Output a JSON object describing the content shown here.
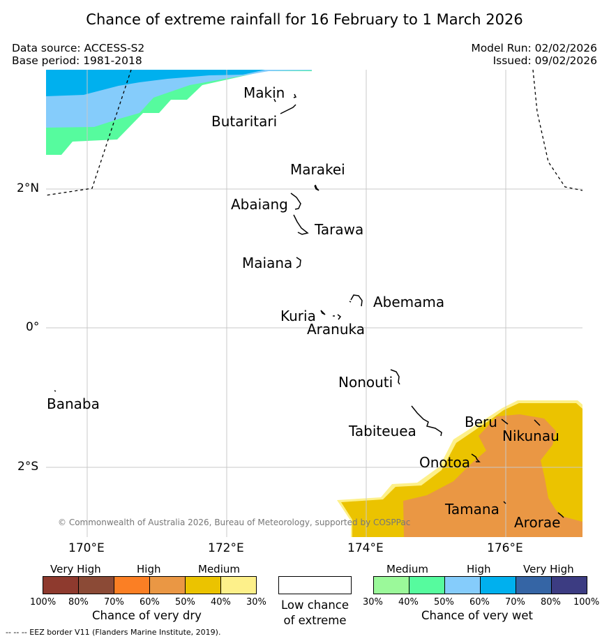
{
  "title": "Chance of extreme rainfall for 16 February to 1 March 2026",
  "header": {
    "data_source": "Data source: ACCESS-S2",
    "base_period": "Base period: 1981-2018",
    "model_run": "Model Run: 02/02/2026",
    "issued": "Issued: 09/02/2026"
  },
  "map": {
    "lat_labels": [
      "2°N",
      "0°",
      "2°S"
    ],
    "lon_labels": [
      "170°E",
      "172°E",
      "174°E",
      "176°E"
    ],
    "islands": {
      "makin": "Makin",
      "butaritari": "Butaritari",
      "marakei": "Marakei",
      "abaiang": "Abaiang",
      "tarawa": "Tarawa",
      "maiana": "Maiana",
      "abemama": "Abemama",
      "kuria": "Kuria",
      "aranuka": "Aranuka",
      "nonouti": "Nonouti",
      "banaba": "Banaba",
      "tabiteuea": "Tabiteuea",
      "beru": "Beru",
      "nikunau": "Nikunau",
      "onotoa": "Onotoa",
      "tamana": "Tamana",
      "arorae": "Arorae"
    },
    "copyright": "© Commonwealth of Australia 2026, Bureau of Meteorology, supported by COSPPac"
  },
  "legend": {
    "dry": {
      "categories": [
        "Very High",
        "High",
        "Medium"
      ],
      "ticks": [
        "100%",
        "80%",
        "70%",
        "60%",
        "50%",
        "40%",
        "30%"
      ],
      "colors": [
        "#8e3a2e",
        "#8b4a36",
        "#fb7f24",
        "#ea9744",
        "#ebc300",
        "#fdf08a"
      ],
      "label": "Chance of very dry"
    },
    "neutral": {
      "line1": "Low chance",
      "line2": "of extreme"
    },
    "wet": {
      "categories": [
        "Medium",
        "High",
        "Very High"
      ],
      "ticks": [
        "30%",
        "40%",
        "50%",
        "60%",
        "70%",
        "80%",
        "100%"
      ],
      "colors": [
        "#9bf99a",
        "#56fb9e",
        "#85ccfb",
        "#00b0ee",
        "#3565a5",
        "#3c3c82"
      ],
      "label": "Chance of very wet"
    }
  },
  "footnote": "--  --  -- EEZ border V11 (Flanders Marine Institute, 2019)."
}
